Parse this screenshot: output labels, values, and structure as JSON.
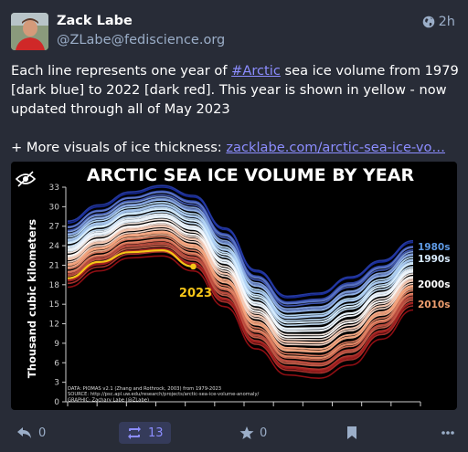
{
  "post": {
    "author_name": "Zack Labe",
    "author_handle": "@ZLabe@fediscience.org",
    "time": "2h",
    "visibility_icon": "globe-icon",
    "text_before_tag": "Each line represents one year of ",
    "hashtag": "#Arctic",
    "text_after_tag": " sea ice volume from 1979 [dark blue] to 2022 [dark red]. This year is shown in yellow - now updated through all of May 2023",
    "more_prefix": "+ More visuals of ice thickness: ",
    "link_text": "zacklabe.com/arctic-sea-ice-vo…"
  },
  "chart_data": {
    "type": "line",
    "title": "ARCTIC SEA ICE VOLUME BY YEAR",
    "ylabel": "Thousand cubic kilometers",
    "ylim": [
      0,
      33
    ],
    "yticks": [
      "0",
      "3",
      "6",
      "9",
      "12",
      "15",
      "18",
      "21",
      "24",
      "27",
      "30",
      "33"
    ],
    "x_start_year": 1979,
    "x_end_year": 2022,
    "decade_labels": [
      {
        "label": "1980s",
        "color": "#5f9be6"
      },
      {
        "label": "1990s",
        "color": "#d8ecff"
      },
      {
        "label": "2000s",
        "color": "#ffffff"
      },
      {
        "label": "2010s",
        "color": "#f0a070"
      }
    ],
    "highlight": {
      "label": "2023",
      "color": "#f5c518",
      "through_month": 5
    },
    "first_year_values": [
      27.5,
      30.0,
      32.0,
      33.0,
      31.5,
      26.5,
      20.0,
      16.0,
      16.5,
      19.0,
      21.5,
      24.5
    ],
    "last_year_values": [
      18.0,
      20.5,
      22.5,
      22.8,
      20.5,
      15.0,
      8.5,
      4.5,
      4.0,
      6.0,
      10.0,
      14.5
    ],
    "year_2023_values": [
      19.0,
      21.5,
      23.0,
      23.3,
      20.8
    ],
    "source_lines": [
      "DATA: PIOMAS v2.1 (Zhang and Rothrock, 2003) from 1979-2023",
      "SOURCE: http://psc.apl.uw.edu/research/projects/arctic-sea-ice-volume-anomaly/",
      "GRAPHIC: Zachary Labe (@ZLabe)"
    ]
  },
  "actions": {
    "reply_count": "0",
    "reblog_count": "13",
    "favourite_count": "0"
  },
  "colors": {
    "background": "#282c37",
    "accent": "#8c8dff",
    "muted": "#9baec8"
  }
}
